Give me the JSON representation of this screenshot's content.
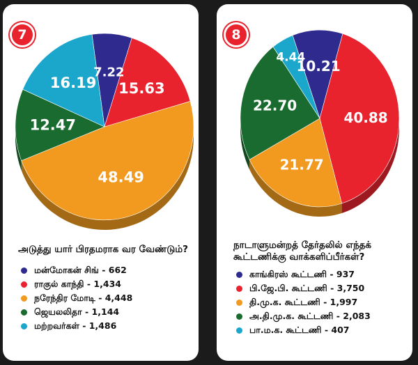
{
  "chart_data": [
    {
      "type": "pie",
      "badge": "7",
      "title": "அடுத்து யார் பிரதமராக வர வேண்டும்?",
      "slices": [
        {
          "label": "மன்மோகன் சிங்",
          "count": "662",
          "value": 7.22,
          "value_text": "7.22",
          "color": "#2e2a8e"
        },
        {
          "label": "ராகுல் காந்தி",
          "count": "1,434",
          "value": 15.63,
          "value_text": "15.63",
          "color": "#e8232e"
        },
        {
          "label": "நரேந்திர மோடி",
          "count": "4,448",
          "value": 48.49,
          "value_text": "48.49",
          "color": "#f19a1f"
        },
        {
          "label": "ஜெயலலிதா",
          "count": "1,144",
          "value": 12.47,
          "value_text": "12.47",
          "color": "#1a6b2f"
        },
        {
          "label": "மற்றவர்கள்",
          "count": "1,486",
          "value": 16.19,
          "value_text": "16.19",
          "color": "#1ba7cc"
        }
      ],
      "legend_items": [
        {
          "text": "மன்மோகன் சிங் - 662",
          "color": "#2e2a8e"
        },
        {
          "text": "ராகுல் காந்தி - 1,434",
          "color": "#e8232e"
        },
        {
          "text": "நரேந்திர மோடி - 4,448",
          "color": "#f19a1f"
        },
        {
          "text": "ஜெயலலிதா - 1,144",
          "color": "#1a6b2f"
        },
        {
          "text": "மற்றவர்கள் - 1,486",
          "color": "#1ba7cc"
        }
      ]
    },
    {
      "type": "pie",
      "badge": "8",
      "title": "நாடாளுமன்றத் தேர்தலில் எந்தக் கூட்டணிக்கு வாக்களிப்பீர்கள்?",
      "slices": [
        {
          "label": "காங்கிரஸ் கூட்டணி",
          "count": "937",
          "value": 10.21,
          "value_text": "10.21",
          "color": "#2e2a8e"
        },
        {
          "label": "பி.ஜே.பி. கூட்டணி",
          "count": "3,750",
          "value": 40.88,
          "value_text": "40.88",
          "color": "#e8232e"
        },
        {
          "label": "தி.மு.க. கூட்டணி",
          "count": "1,997",
          "value": 21.77,
          "value_text": "21.77",
          "color": "#f19a1f"
        },
        {
          "label": "அ.தி.மு.க. கூட்டணி",
          "count": "2,083",
          "value": 22.7,
          "value_text": "22.70",
          "color": "#1a6b2f"
        },
        {
          "label": "பா.ம.க. கூட்டணி",
          "count": "407",
          "value": 4.44,
          "value_text": "4.44",
          "color": "#1ba7cc"
        }
      ],
      "legend_items": [
        {
          "text": "காங்கிரஸ் கூட்டணி - 937",
          "color": "#2e2a8e"
        },
        {
          "text": "பி.ஜே.பி. கூட்டணி - 3,750",
          "color": "#e8232e"
        },
        {
          "text": "தி.மு.க. கூட்டணி - 1,997",
          "color": "#f19a1f"
        },
        {
          "text": "அ.தி.மு.க. கூட்டணி - 2,083",
          "color": "#1a6b2f"
        },
        {
          "text": "பா.ம.க. கூட்டணி - 407",
          "color": "#1ba7cc"
        }
      ]
    }
  ]
}
